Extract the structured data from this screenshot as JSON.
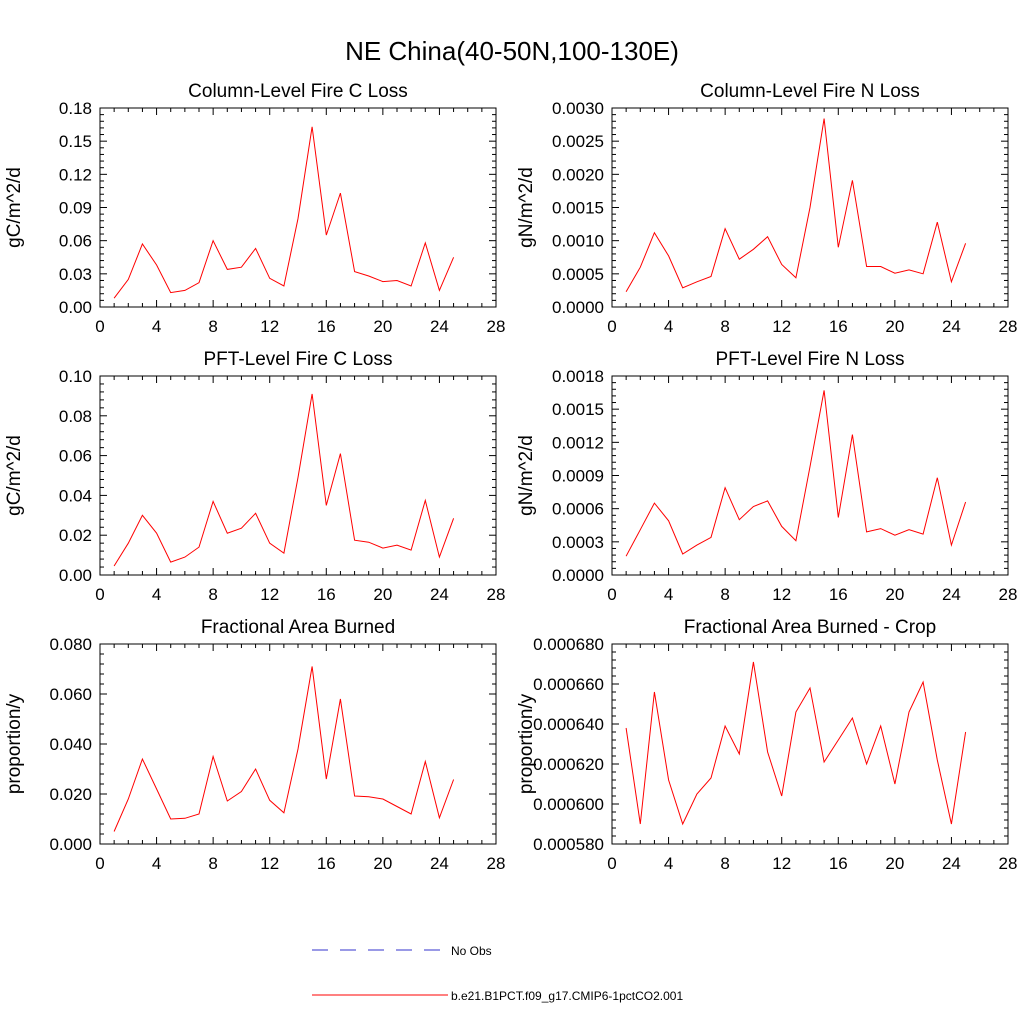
{
  "figure": {
    "title": "NE China(40-50N,100-130E)",
    "legend": [
      {
        "label": "No Obs",
        "color": "#3333cc",
        "dash": true
      },
      {
        "label": "b.e21.B1PCT.f09_g17.CMIP6-1pctCO2.001",
        "color": "#ff0000",
        "dash": false
      }
    ]
  },
  "chart_data": [
    {
      "type": "line",
      "title": "Column-Level Fire C Loss",
      "ylabel": "gC/m^2/d",
      "xlim": [
        0,
        28
      ],
      "xticks": [
        0,
        4,
        8,
        12,
        16,
        20,
        24,
        28
      ],
      "ylim": [
        0,
        0.18
      ],
      "yticks": [
        "0.00",
        "0.03",
        "0.06",
        "0.09",
        "0.12",
        "0.15",
        "0.18"
      ],
      "x": [
        1,
        2,
        3,
        4,
        5,
        6,
        7,
        8,
        9,
        10,
        11,
        12,
        13,
        14,
        15,
        16,
        17,
        18,
        19,
        20,
        21,
        22,
        23,
        24,
        25
      ],
      "series": [
        {
          "name": "b.e21.B1PCT.f09_g17.CMIP6-1pctCO2.001",
          "color": "#ff0000",
          "values": [
            0.008,
            0.025,
            0.057,
            0.038,
            0.013,
            0.015,
            0.022,
            0.06,
            0.034,
            0.036,
            0.053,
            0.026,
            0.019,
            0.08,
            0.163,
            0.065,
            0.103,
            0.032,
            0.028,
            0.023,
            0.024,
            0.019,
            0.058,
            0.015,
            0.045
          ]
        }
      ]
    },
    {
      "type": "line",
      "title": "Column-Level Fire N Loss",
      "ylabel": "gN/m^2/d",
      "xlim": [
        0,
        28
      ],
      "xticks": [
        0,
        4,
        8,
        12,
        16,
        20,
        24,
        28
      ],
      "ylim": [
        0,
        0.003
      ],
      "yticks": [
        "0.0000",
        "0.0005",
        "0.0010",
        "0.0015",
        "0.0020",
        "0.0025",
        "0.0030"
      ],
      "x": [
        1,
        2,
        3,
        4,
        5,
        6,
        7,
        8,
        9,
        10,
        11,
        12,
        13,
        14,
        15,
        16,
        17,
        18,
        19,
        20,
        21,
        22,
        23,
        24,
        25
      ],
      "series": [
        {
          "name": "b.e21.B1PCT.f09_g17.CMIP6-1pctCO2.001",
          "color": "#ff0000",
          "values": [
            0.00023,
            0.0006,
            0.00112,
            0.00077,
            0.00029,
            0.00038,
            0.00046,
            0.00118,
            0.00072,
            0.00087,
            0.00106,
            0.00064,
            0.00044,
            0.0015,
            0.00284,
            0.0009,
            0.00191,
            0.00061,
            0.00061,
            0.00051,
            0.00056,
            0.0005,
            0.00128,
            0.00038,
            0.00096
          ]
        }
      ]
    },
    {
      "type": "line",
      "title": "PFT-Level Fire C Loss",
      "ylabel": "gC/m^2/d",
      "xlim": [
        0,
        28
      ],
      "xticks": [
        0,
        4,
        8,
        12,
        16,
        20,
        24,
        28
      ],
      "ylim": [
        0,
        0.1
      ],
      "yticks": [
        "0.00",
        "0.02",
        "0.04",
        "0.06",
        "0.08",
        "0.10"
      ],
      "x": [
        1,
        2,
        3,
        4,
        5,
        6,
        7,
        8,
        9,
        10,
        11,
        12,
        13,
        14,
        15,
        16,
        17,
        18,
        19,
        20,
        21,
        22,
        23,
        24,
        25
      ],
      "series": [
        {
          "name": "b.e21.B1PCT.f09_g17.CMIP6-1pctCO2.001",
          "color": "#ff0000",
          "values": [
            0.0045,
            0.016,
            0.03,
            0.021,
            0.0065,
            0.009,
            0.014,
            0.037,
            0.021,
            0.0235,
            0.031,
            0.016,
            0.011,
            0.049,
            0.091,
            0.035,
            0.061,
            0.0175,
            0.0165,
            0.0135,
            0.015,
            0.0125,
            0.0375,
            0.009,
            0.0285
          ]
        }
      ]
    },
    {
      "type": "line",
      "title": "PFT-Level Fire N Loss",
      "ylabel": "gN/m^2/d",
      "xlim": [
        0,
        28
      ],
      "xticks": [
        0,
        4,
        8,
        12,
        16,
        20,
        24,
        28
      ],
      "ylim": [
        0,
        0.0018
      ],
      "yticks": [
        "0.0000",
        "0.0003",
        "0.0006",
        "0.0009",
        "0.0012",
        "0.0015",
        "0.0018"
      ],
      "x": [
        1,
        2,
        3,
        4,
        5,
        6,
        7,
        8,
        9,
        10,
        11,
        12,
        13,
        14,
        15,
        16,
        17,
        18,
        19,
        20,
        21,
        22,
        23,
        24,
        25
      ],
      "series": [
        {
          "name": "b.e21.B1PCT.f09_g17.CMIP6-1pctCO2.001",
          "color": "#ff0000",
          "values": [
            0.00017,
            0.00041,
            0.00065,
            0.00049,
            0.00019,
            0.00027,
            0.00034,
            0.00079,
            0.0005,
            0.00062,
            0.00067,
            0.00044,
            0.00031,
            0.00098,
            0.00167,
            0.00052,
            0.00127,
            0.00039,
            0.00042,
            0.00036,
            0.00041,
            0.00037,
            0.00088,
            0.00027,
            0.00066
          ]
        }
      ]
    },
    {
      "type": "line",
      "title": "Fractional Area Burned",
      "ylabel": "proportion/y",
      "xlim": [
        0,
        28
      ],
      "xticks": [
        0,
        4,
        8,
        12,
        16,
        20,
        24,
        28
      ],
      "ylim": [
        0,
        0.08
      ],
      "yticks": [
        "0.000",
        "0.020",
        "0.040",
        "0.060",
        "0.080"
      ],
      "x": [
        1,
        2,
        3,
        4,
        5,
        6,
        7,
        8,
        9,
        10,
        11,
        12,
        13,
        14,
        15,
        16,
        17,
        18,
        19,
        20,
        21,
        22,
        23,
        24,
        25
      ],
      "series": [
        {
          "name": "b.e21.B1PCT.f09_g17.CMIP6-1pctCO2.001",
          "color": "#ff0000",
          "values": [
            0.005,
            0.018,
            0.034,
            0.022,
            0.01,
            0.0103,
            0.012,
            0.035,
            0.0172,
            0.021,
            0.03,
            0.0175,
            0.0125,
            0.038,
            0.071,
            0.026,
            0.058,
            0.0192,
            0.0189,
            0.018,
            0.015,
            0.012,
            0.033,
            0.0105,
            0.0258
          ]
        }
      ]
    },
    {
      "type": "line",
      "title": "Fractional Area Burned - Crop",
      "ylabel": "proportion/y",
      "xlim": [
        0,
        28
      ],
      "xticks": [
        0,
        4,
        8,
        12,
        16,
        20,
        24,
        28
      ],
      "ylim": [
        0.00058,
        0.00068
      ],
      "yticks": [
        "0.000580",
        "0.000600",
        "0.000620",
        "0.000640",
        "0.000660",
        "0.000680"
      ],
      "x": [
        1,
        2,
        3,
        4,
        5,
        6,
        7,
        8,
        9,
        10,
        11,
        12,
        13,
        14,
        15,
        16,
        17,
        18,
        19,
        20,
        21,
        22,
        23,
        24,
        25
      ],
      "series": [
        {
          "name": "b.e21.B1PCT.f09_g17.CMIP6-1pctCO2.001",
          "color": "#ff0000",
          "values": [
            0.000638,
            0.00059,
            0.000656,
            0.000612,
            0.00059,
            0.000605,
            0.000613,
            0.000639,
            0.000625,
            0.000671,
            0.000626,
            0.000604,
            0.000646,
            0.000658,
            0.000621,
            0.000632,
            0.000643,
            0.00062,
            0.000639,
            0.00061,
            0.000646,
            0.000661,
            0.000622,
            0.00059,
            0.000636
          ]
        }
      ]
    }
  ]
}
